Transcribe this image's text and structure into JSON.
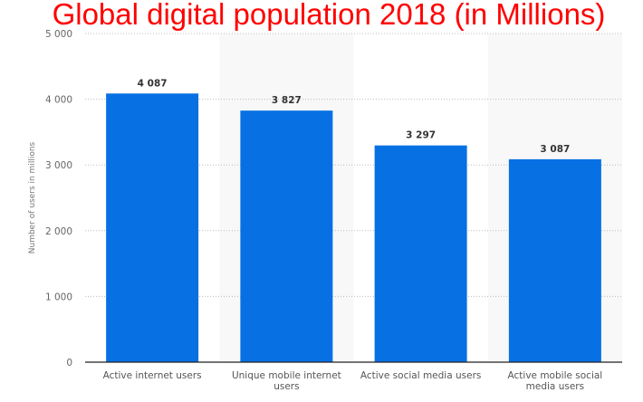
{
  "chart_data": {
    "type": "bar",
    "title": "Global digital population 2018 (in Millions)",
    "xlabel": "",
    "ylabel": "Number of users in millions",
    "ylim": [
      0,
      5000
    ],
    "yticks": [
      0,
      1000,
      2000,
      3000,
      4000,
      5000
    ],
    "ytick_labels": [
      "0",
      "1 000",
      "2 000",
      "3 000",
      "4 000",
      "5 000"
    ],
    "grid": true,
    "categories": [
      [
        "Active internet users"
      ],
      [
        "Unique mobile internet",
        "users"
      ],
      [
        "Active social media users"
      ],
      [
        "Active mobile social",
        "media users"
      ]
    ],
    "values": [
      4087,
      3827,
      3297,
      3087
    ],
    "value_labels": [
      "4 087",
      "3 827",
      "3 297",
      "3 087"
    ],
    "bar_color": "#0770e3",
    "title_color": "#ff0000"
  }
}
